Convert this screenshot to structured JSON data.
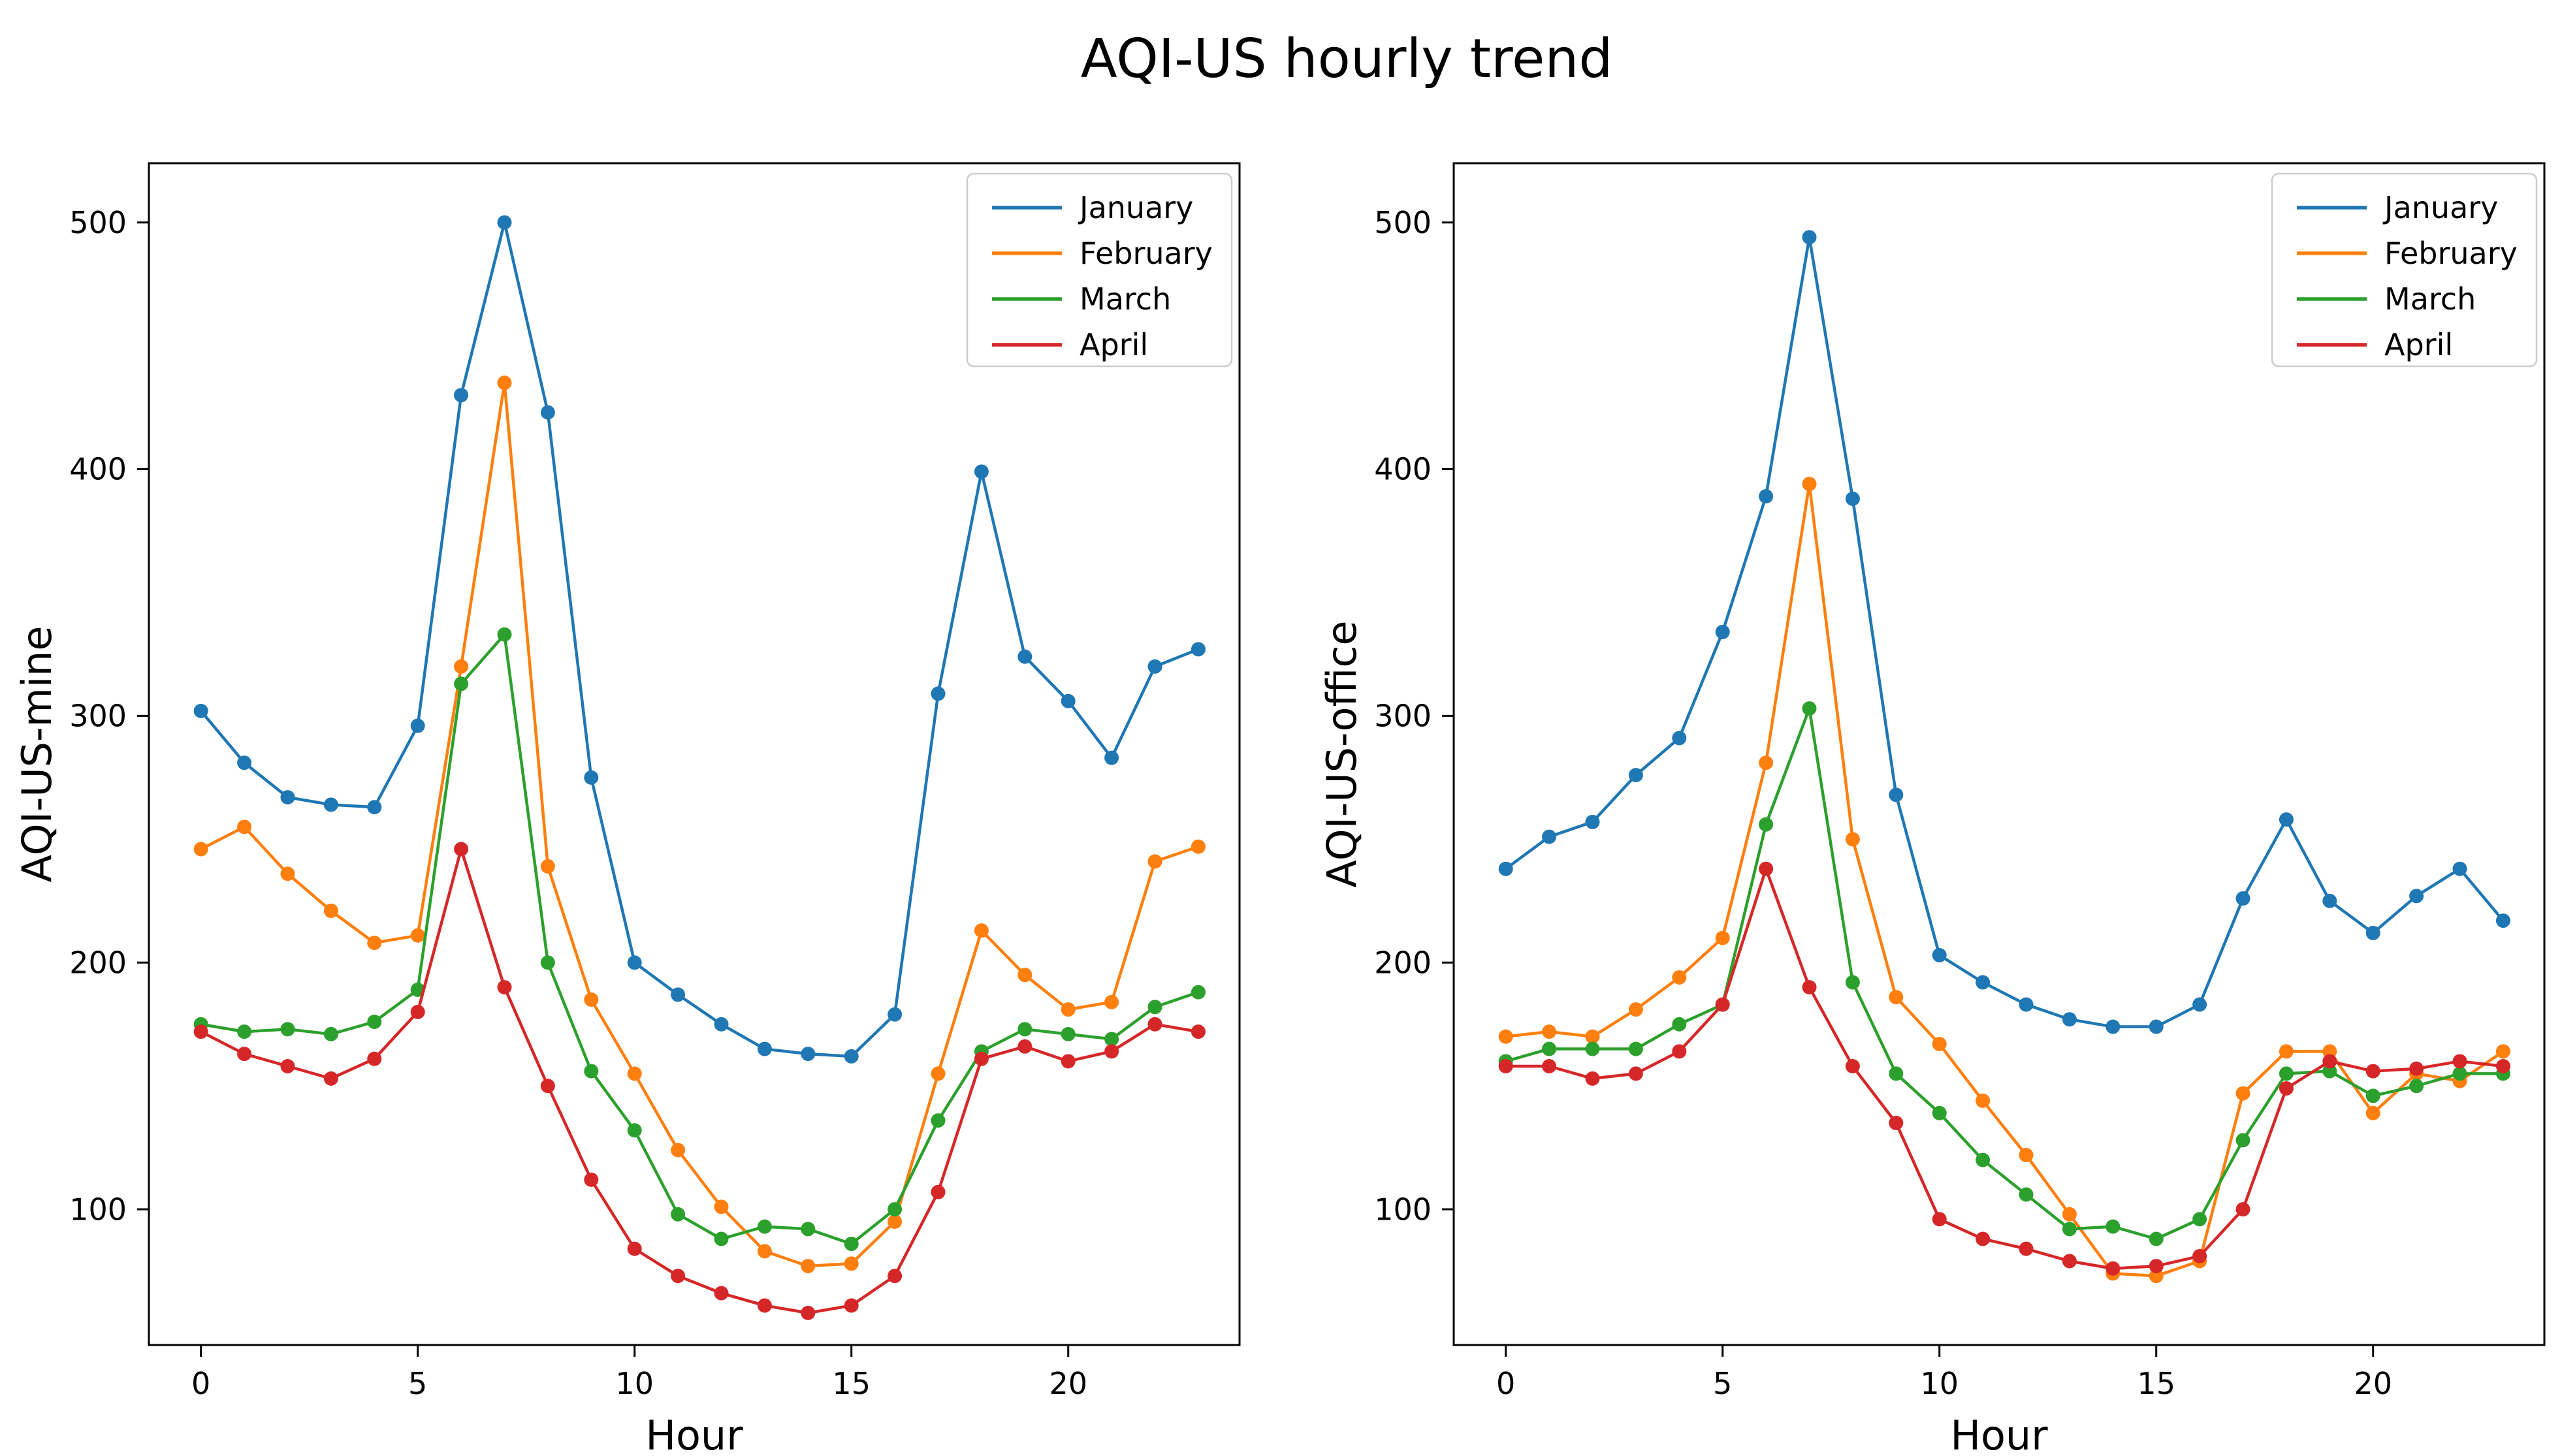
{
  "title": "AQI-US hourly trend",
  "colors": {
    "january": "#1f77b4",
    "february": "#ff7f0e",
    "march": "#2ca02c",
    "april": "#d62728",
    "spine": "#000000",
    "legend_border": "#cccccc"
  },
  "chart_data": [
    {
      "type": "line",
      "id": "mine",
      "ylabel": "AQI-US-mine",
      "xlabel": "Hour",
      "x": [
        0,
        1,
        2,
        3,
        4,
        5,
        6,
        7,
        8,
        9,
        10,
        11,
        12,
        13,
        14,
        15,
        16,
        17,
        18,
        19,
        20,
        21,
        22,
        23
      ],
      "xticks": [
        0,
        5,
        10,
        15,
        20
      ],
      "yticks": [
        100,
        200,
        300,
        400,
        500
      ],
      "xlim": [
        -1.2,
        23.95
      ],
      "ylim": [
        45,
        524
      ],
      "grid": false,
      "legend_position": "top-right",
      "series": [
        {
          "name": "January",
          "color": "#1f77b4",
          "values": [
            302,
            281,
            267,
            264,
            263,
            296,
            430,
            500,
            423,
            275,
            200,
            187,
            175,
            165,
            163,
            162,
            179,
            309,
            399,
            324,
            306,
            283,
            320,
            327
          ]
        },
        {
          "name": "February",
          "color": "#ff7f0e",
          "values": [
            246,
            255,
            236,
            221,
            208,
            211,
            320,
            435,
            239,
            185,
            155,
            124,
            101,
            83,
            77,
            78,
            95,
            155,
            213,
            195,
            181,
            184,
            241,
            247
          ]
        },
        {
          "name": "March",
          "color": "#2ca02c",
          "values": [
            175,
            172,
            173,
            171,
            176,
            189,
            313,
            333,
            200,
            156,
            132,
            98,
            88,
            93,
            92,
            86,
            100,
            136,
            164,
            173,
            171,
            169,
            182,
            188
          ]
        },
        {
          "name": "April",
          "color": "#d62728",
          "values": [
            172,
            163,
            158,
            153,
            161,
            180,
            246,
            190,
            150,
            112,
            84,
            73,
            66,
            61,
            58,
            61,
            73,
            107,
            161,
            166,
            160,
            164,
            175,
            172
          ]
        }
      ]
    },
    {
      "type": "line",
      "id": "office",
      "ylabel": "AQI-US-office",
      "xlabel": "Hour",
      "x": [
        0,
        1,
        2,
        3,
        4,
        5,
        6,
        7,
        8,
        9,
        10,
        11,
        12,
        13,
        14,
        15,
        16,
        17,
        18,
        19,
        20,
        21,
        22,
        23
      ],
      "xticks": [
        0,
        5,
        10,
        15,
        20
      ],
      "yticks": [
        100,
        200,
        300,
        400,
        500
      ],
      "xlim": [
        -1.2,
        23.95
      ],
      "ylim": [
        45,
        524
      ],
      "grid": false,
      "legend_position": "top-right",
      "series": [
        {
          "name": "January",
          "color": "#1f77b4",
          "values": [
            238,
            251,
            257,
            276,
            291,
            334,
            389,
            494,
            388,
            268,
            203,
            192,
            183,
            177,
            174,
            174,
            183,
            226,
            258,
            225,
            212,
            227,
            238,
            217
          ]
        },
        {
          "name": "February",
          "color": "#ff7f0e",
          "values": [
            170,
            172,
            170,
            181,
            194,
            210,
            281,
            394,
            250,
            186,
            167,
            144,
            122,
            98,
            74,
            73,
            79,
            147,
            164,
            164,
            139,
            155,
            152,
            164
          ]
        },
        {
          "name": "March",
          "color": "#2ca02c",
          "values": [
            160,
            165,
            165,
            165,
            175,
            183,
            256,
            303,
            192,
            155,
            139,
            120,
            106,
            92,
            93,
            88,
            96,
            128,
            155,
            156,
            146,
            150,
            155,
            155
          ]
        },
        {
          "name": "April",
          "color": "#d62728",
          "values": [
            158,
            158,
            153,
            155,
            164,
            183,
            238,
            190,
            158,
            135,
            96,
            88,
            84,
            79,
            76,
            77,
            81,
            100,
            149,
            160,
            156,
            157,
            160,
            158
          ]
        }
      ]
    }
  ]
}
